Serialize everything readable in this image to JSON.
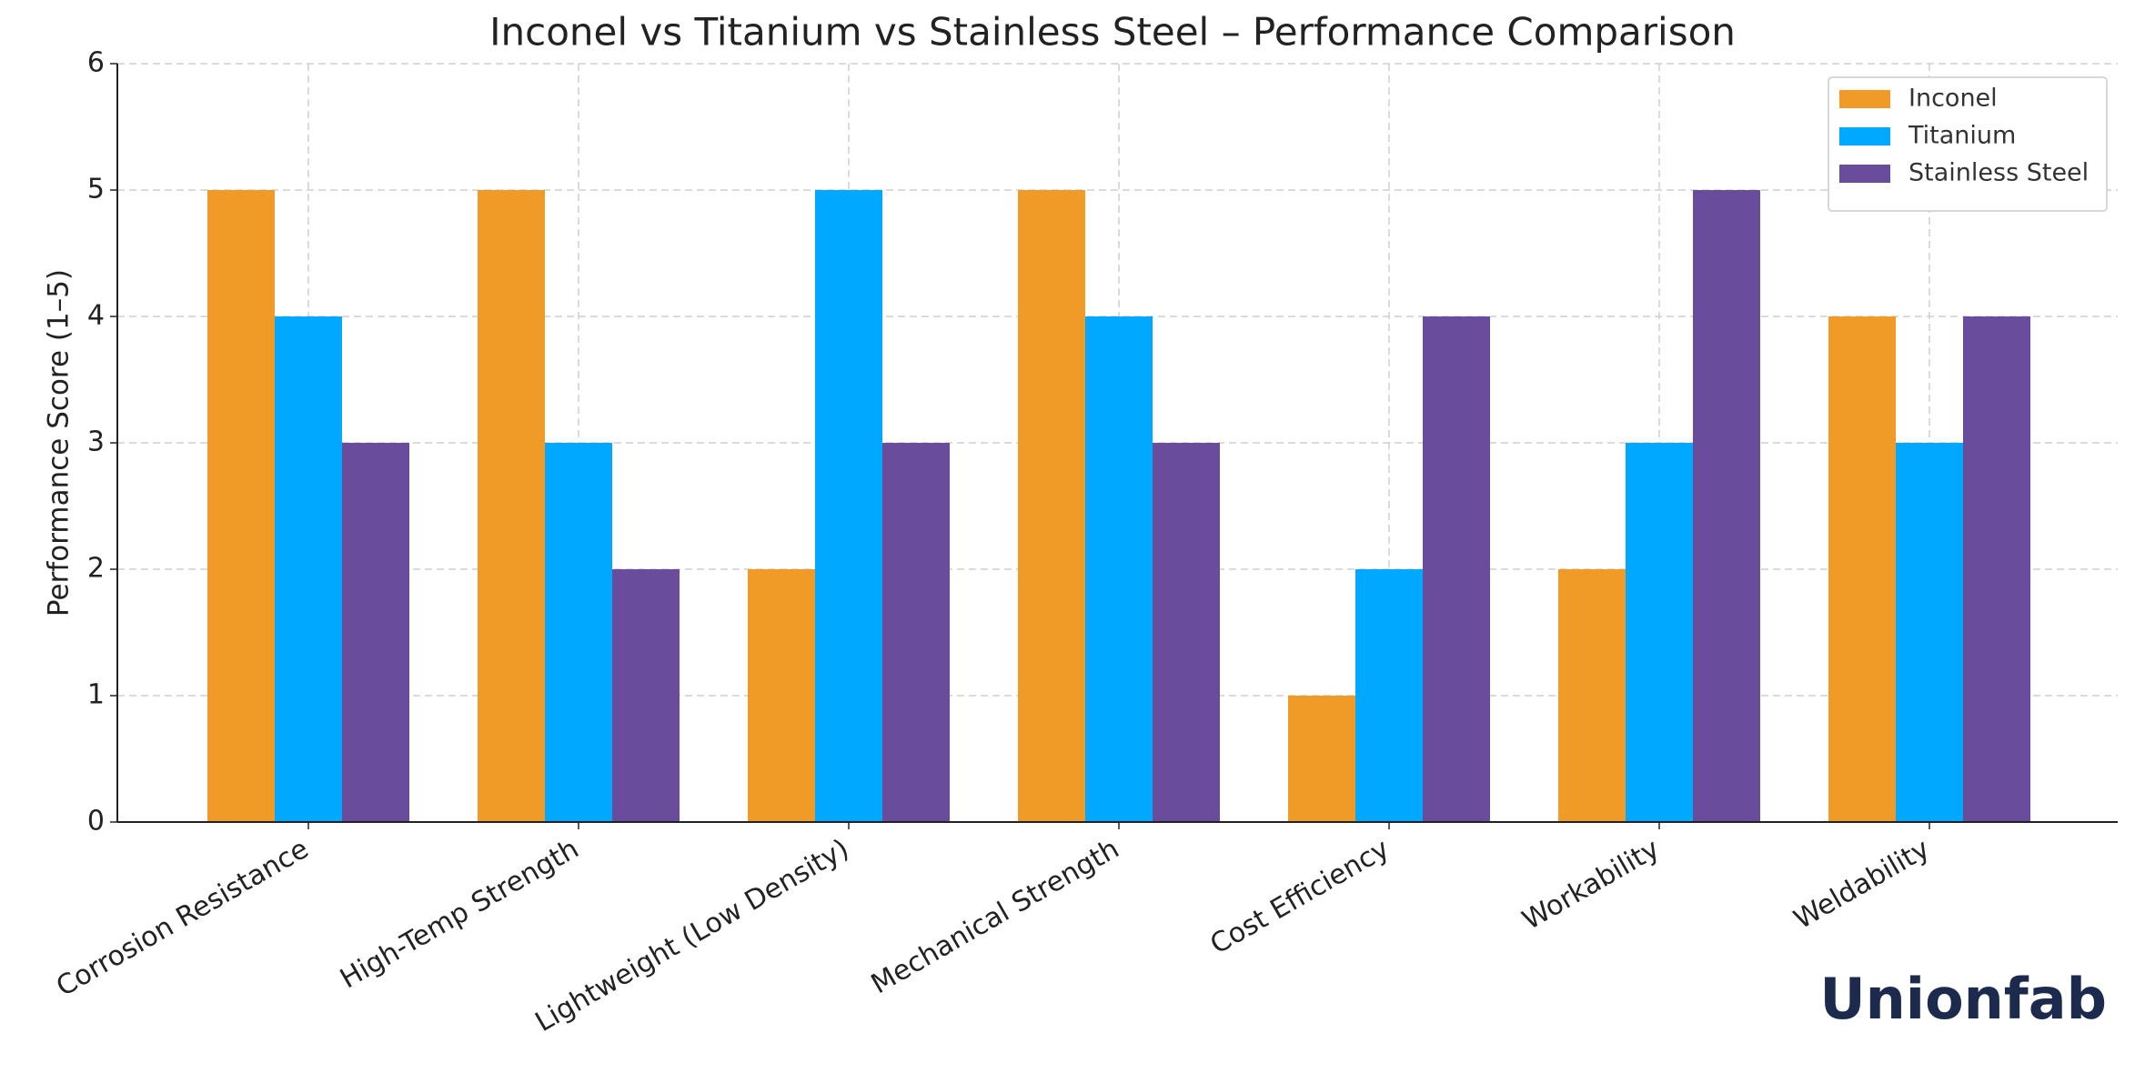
{
  "chart_data": {
    "type": "bar",
    "title": "Inconel vs Titanium vs Stainless Steel – Performance Comparison",
    "y_label": "Performance Score (1–5)",
    "categories": [
      "Corrosion Resistance",
      "High-Temp Strength",
      "Lightweight (Low Density)",
      "Mechanical Strength",
      "Cost Efficiency",
      "Workability",
      "Weldability"
    ],
    "series": [
      {
        "name": "Inconel",
        "color": "#f09a28",
        "values": [
          5,
          5,
          2,
          5,
          1,
          2,
          4
        ]
      },
      {
        "name": "Titanium",
        "color": "#00a8ff",
        "values": [
          4,
          3,
          5,
          4,
          2,
          3,
          3
        ]
      },
      {
        "name": "Stainless Steel",
        "color": "#6a4c9c",
        "values": [
          3,
          2,
          3,
          3,
          4,
          5,
          4
        ]
      }
    ],
    "ylim": [
      0,
      6
    ],
    "yticks": [
      0,
      1,
      2,
      3,
      4,
      5,
      6
    ],
    "grid": true,
    "legend": "upper right",
    "watermark": "Unionfab"
  }
}
